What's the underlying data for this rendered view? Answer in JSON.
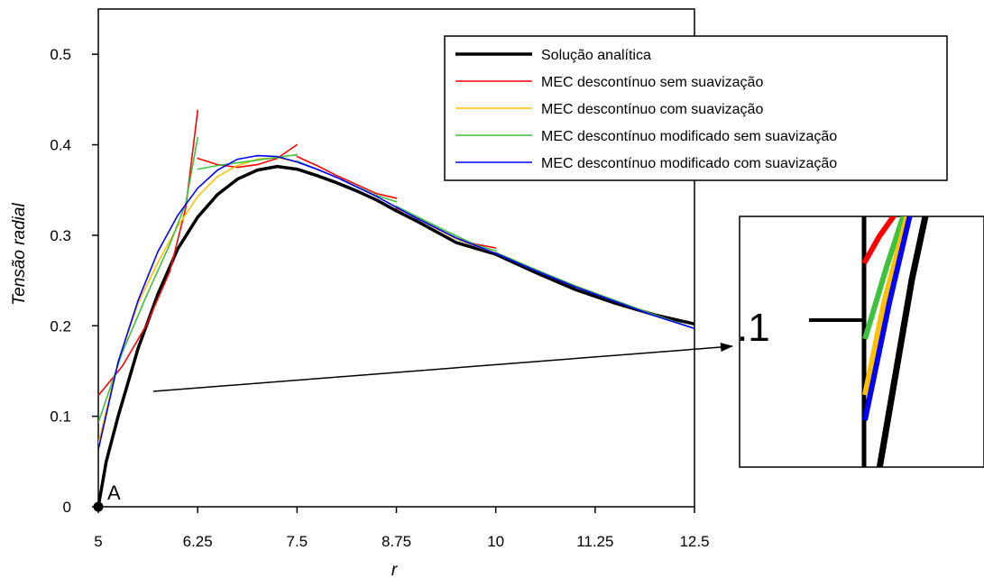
{
  "chart_data": {
    "type": "line",
    "xlabel": "r",
    "ylabel": "Tensão radial",
    "xlim": [
      5,
      12.5
    ],
    "ylim": [
      0,
      0.55
    ],
    "xticks": [
      "5",
      "6.25",
      "7.5",
      "8.75",
      "10",
      "11.25",
      "12.5"
    ],
    "yticks": [
      "0",
      "0.1",
      "0.2",
      "0.3",
      "0.4",
      "0.5"
    ],
    "grid": false,
    "legend_position": "top-right",
    "series": [
      {
        "name": "Solução analítica",
        "color": "#000000",
        "segments": [
          [
            [
              5.0,
              0.0
            ],
            [
              5.1,
              0.05
            ],
            [
              5.25,
              0.1
            ],
            [
              5.5,
              0.175
            ],
            [
              5.75,
              0.235
            ],
            [
              6.0,
              0.285
            ],
            [
              6.25,
              0.32
            ],
            [
              6.5,
              0.345
            ],
            [
              6.75,
              0.362
            ],
            [
              7.0,
              0.372
            ],
            [
              7.25,
              0.376
            ],
            [
              7.5,
              0.373
            ],
            [
              7.75,
              0.366
            ],
            [
              8.0,
              0.358
            ],
            [
              8.25,
              0.349
            ],
            [
              8.5,
              0.339
            ],
            [
              8.75,
              0.327
            ],
            [
              9.0,
              0.316
            ],
            [
              9.5,
              0.292
            ],
            [
              10.0,
              0.279
            ],
            [
              10.5,
              0.259
            ],
            [
              11.0,
              0.24
            ],
            [
              11.5,
              0.225
            ],
            [
              12.0,
              0.212
            ],
            [
              12.5,
              0.202
            ]
          ]
        ]
      },
      {
        "name": "MEC descontínuo sem suavização",
        "color": "#ff0000",
        "segments": [
          [
            [
              5.0,
              0.123
            ],
            [
              5.3,
              0.155
            ],
            [
              5.6,
              0.2
            ],
            [
              5.9,
              0.26
            ],
            [
              6.1,
              0.33
            ],
            [
              6.25,
              0.438
            ]
          ],
          [
            [
              6.25,
              0.385
            ],
            [
              6.5,
              0.378
            ],
            [
              6.75,
              0.375
            ],
            [
              7.0,
              0.378
            ],
            [
              7.25,
              0.385
            ],
            [
              7.5,
              0.4
            ]
          ],
          [
            [
              7.5,
              0.387
            ],
            [
              7.75,
              0.377
            ],
            [
              8.0,
              0.366
            ],
            [
              8.25,
              0.356
            ],
            [
              8.5,
              0.346
            ],
            [
              8.75,
              0.341
            ]
          ],
          [
            [
              8.75,
              0.33
            ],
            [
              9.0,
              0.32
            ],
            [
              9.25,
              0.308
            ],
            [
              9.5,
              0.297
            ],
            [
              9.75,
              0.29
            ],
            [
              10.0,
              0.286
            ]
          ],
          [
            [
              10.0,
              0.281
            ],
            [
              10.5,
              0.262
            ],
            [
              11.0,
              0.244
            ],
            [
              11.5,
              0.228
            ],
            [
              12.0,
              0.212
            ],
            [
              12.5,
              0.197
            ]
          ]
        ]
      },
      {
        "name": "MEC descontínuo com suavização",
        "color": "#ffc000",
        "segments": [
          [
            [
              5.0,
              0.07
            ],
            [
              5.25,
              0.16
            ],
            [
              5.5,
              0.225
            ],
            [
              5.75,
              0.27
            ],
            [
              6.0,
              0.31
            ],
            [
              6.25,
              0.343
            ],
            [
              6.5,
              0.365
            ],
            [
              6.75,
              0.377
            ],
            [
              7.0,
              0.384
            ],
            [
              7.25,
              0.386
            ],
            [
              7.5,
              0.381
            ],
            [
              7.75,
              0.373
            ],
            [
              8.0,
              0.364
            ],
            [
              8.5,
              0.343
            ],
            [
              9.0,
              0.319
            ],
            [
              9.5,
              0.296
            ],
            [
              10.0,
              0.28
            ],
            [
              10.5,
              0.261
            ],
            [
              11.0,
              0.243
            ],
            [
              11.5,
              0.227
            ],
            [
              12.0,
              0.211
            ],
            [
              12.5,
              0.197
            ]
          ]
        ]
      },
      {
        "name": "MEC descontínuo modificado sem suavização",
        "color": "#3cc23c",
        "segments": [
          [
            [
              5.0,
              0.093
            ],
            [
              5.3,
              0.17
            ],
            [
              5.6,
              0.232
            ],
            [
              5.9,
              0.29
            ],
            [
              6.1,
              0.335
            ],
            [
              6.25,
              0.408
            ]
          ],
          [
            [
              6.25,
              0.373
            ],
            [
              6.5,
              0.377
            ],
            [
              6.75,
              0.38
            ],
            [
              7.0,
              0.383
            ],
            [
              7.25,
              0.386
            ],
            [
              7.5,
              0.389
            ]
          ],
          [
            [
              7.5,
              0.382
            ],
            [
              7.75,
              0.373
            ],
            [
              8.0,
              0.364
            ],
            [
              8.25,
              0.354
            ],
            [
              8.5,
              0.344
            ],
            [
              8.75,
              0.337
            ]
          ],
          [
            [
              8.75,
              0.332
            ],
            [
              9.25,
              0.31
            ],
            [
              9.75,
              0.289
            ],
            [
              10.0,
              0.283
            ]
          ],
          [
            [
              10.0,
              0.281
            ],
            [
              10.5,
              0.262
            ],
            [
              11.0,
              0.244
            ],
            [
              11.5,
              0.228
            ],
            [
              12.0,
              0.212
            ],
            [
              12.5,
              0.197
            ]
          ]
        ]
      },
      {
        "name": "MEC descontínuo modificado com suavização",
        "color": "#0000ff",
        "segments": [
          [
            [
              5.0,
              0.063
            ],
            [
              5.25,
              0.16
            ],
            [
              5.5,
              0.228
            ],
            [
              5.75,
              0.282
            ],
            [
              6.0,
              0.322
            ],
            [
              6.25,
              0.352
            ],
            [
              6.5,
              0.372
            ],
            [
              6.75,
              0.384
            ],
            [
              7.0,
              0.388
            ],
            [
              7.25,
              0.387
            ],
            [
              7.5,
              0.381
            ],
            [
              7.75,
              0.373
            ],
            [
              8.0,
              0.364
            ],
            [
              8.5,
              0.343
            ],
            [
              9.0,
              0.319
            ],
            [
              9.5,
              0.297
            ],
            [
              10.0,
              0.28
            ],
            [
              10.5,
              0.261
            ],
            [
              11.0,
              0.243
            ],
            [
              11.5,
              0.227
            ],
            [
              12.0,
              0.211
            ],
            [
              12.5,
              0.197
            ]
          ]
        ]
      }
    ],
    "annotations": [
      {
        "text": "A",
        "x": 5,
        "y": 0
      }
    ],
    "inset": {
      "label": ".1"
    }
  }
}
